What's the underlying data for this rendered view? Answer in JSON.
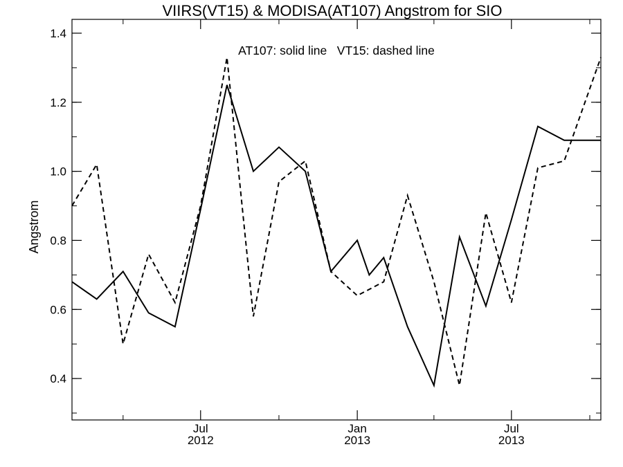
{
  "chart_data": {
    "type": "line",
    "title": "VIIRS(VT15) & MODISA(AT107)  Angstrom for SIO",
    "annotation": "AT107: solid line   VT15: dashed line",
    "xlabel": "",
    "ylabel": "Angstrom",
    "xlim": [
      "2012-02-01",
      "2013-10-14"
    ],
    "ylim": [
      0.28,
      1.44
    ],
    "grid": false,
    "legend": "none",
    "y_ticks": [
      {
        "value": 0.4,
        "label": "0.4"
      },
      {
        "value": 0.6,
        "label": "0.6"
      },
      {
        "value": 0.8,
        "label": "0.8"
      },
      {
        "value": 1.0,
        "label": "1.0"
      },
      {
        "value": 1.2,
        "label": "1.2"
      },
      {
        "value": 1.4,
        "label": "1.4"
      }
    ],
    "x_ticks": [
      {
        "value": "2012-07-01",
        "month": "Jul",
        "year": "2012"
      },
      {
        "value": "2013-01-01",
        "month": "Jan",
        "year": "2013"
      },
      {
        "value": "2013-07-01",
        "month": "Jul",
        "year": "2013"
      }
    ],
    "series": [
      {
        "name": "AT107",
        "style": "solid",
        "color": "#000000",
        "x": [
          "2012-02-01",
          "2012-03-01",
          "2012-04-01",
          "2012-05-01",
          "2012-06-01",
          "2012-07-01",
          "2012-08-01",
          "2012-09-01",
          "2012-10-01",
          "2012-11-01",
          "2012-12-01",
          "2013-01-01",
          "2013-01-15",
          "2013-02-01",
          "2013-03-01",
          "2013-04-01",
          "2013-05-01",
          "2013-06-01",
          "2013-07-01",
          "2013-08-01",
          "2013-09-01",
          "2013-10-14"
        ],
        "values": [
          0.68,
          0.63,
          0.71,
          0.59,
          0.55,
          0.89,
          1.25,
          1.0,
          1.07,
          1.0,
          0.71,
          0.8,
          0.7,
          0.75,
          0.55,
          0.38,
          0.81,
          0.61,
          0.86,
          1.13,
          1.09,
          1.09
        ]
      },
      {
        "name": "VT15",
        "style": "dashed",
        "color": "#000000",
        "x": [
          "2012-02-01",
          "2012-03-01",
          "2012-04-01",
          "2012-05-01",
          "2012-06-01",
          "2012-07-01",
          "2012-08-01",
          "2012-09-01",
          "2012-10-01",
          "2012-11-01",
          "2012-12-01",
          "2013-01-01",
          "2013-02-01",
          "2013-03-01",
          "2013-04-01",
          "2013-05-01",
          "2013-06-01",
          "2013-07-01",
          "2013-08-01",
          "2013-09-01",
          "2013-10-14"
        ],
        "values": [
          0.9,
          1.02,
          0.5,
          0.76,
          0.62,
          0.9,
          1.33,
          0.58,
          0.97,
          1.03,
          0.71,
          0.64,
          0.68,
          0.93,
          0.68,
          0.38,
          0.88,
          0.62,
          1.01,
          1.03,
          1.33
        ]
      }
    ]
  }
}
